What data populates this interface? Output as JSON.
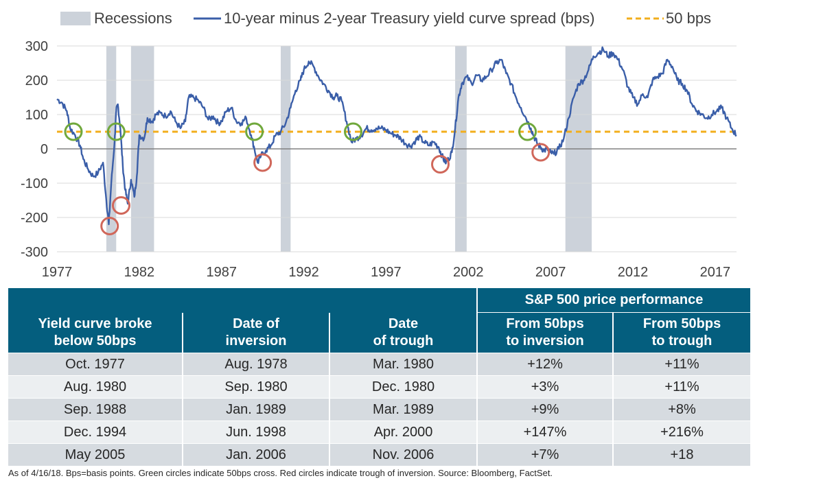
{
  "chart_data": {
    "type": "line",
    "legend": [
      {
        "label": "Recessions",
        "kind": "band",
        "color": "#ccd2da"
      },
      {
        "label": "10-year minus 2-year Treasury yield curve spread (bps)",
        "kind": "line",
        "color": "#3a5ea8"
      },
      {
        "label": "50 bps",
        "kind": "dashed",
        "color": "#f2ae1c"
      }
    ],
    "x_ticks": [
      "1977",
      "1982",
      "1987",
      "1992",
      "1997",
      "2002",
      "2007",
      "2012",
      "2017"
    ],
    "y_ticks": [
      "300",
      "200",
      "100",
      "0",
      "-100",
      "-200",
      "-300"
    ],
    "xlim": [
      1977,
      2018.3
    ],
    "ylim": [
      -300,
      300
    ],
    "threshold": 50,
    "recessions": [
      [
        1980.0,
        1980.6
      ],
      [
        1981.5,
        1982.9
      ],
      [
        1990.6,
        1991.2
      ],
      [
        2001.2,
        2001.9
      ],
      [
        2007.9,
        2009.5
      ]
    ],
    "series": [
      {
        "name": "10-year minus 2-year Treasury yield curve spread (bps)",
        "x": [
          1977.0,
          1977.3,
          1977.6,
          1977.8,
          1978.1,
          1978.4,
          1978.6,
          1978.9,
          1979.2,
          1979.5,
          1979.8,
          1980.0,
          1980.15,
          1980.3,
          1980.5,
          1980.6,
          1980.7,
          1980.85,
          1981.0,
          1981.15,
          1981.3,
          1981.5,
          1981.7,
          1981.85,
          1982.0,
          1982.3,
          1982.5,
          1982.8,
          1983.0,
          1983.3,
          1983.6,
          1983.9,
          1984.2,
          1984.5,
          1984.8,
          1985.0,
          1985.3,
          1985.6,
          1985.9,
          1986.2,
          1986.5,
          1986.8,
          1987.0,
          1987.3,
          1987.6,
          1987.9,
          1988.2,
          1988.5,
          1988.8,
          1989.0,
          1989.2,
          1989.4,
          1989.7,
          1990.0,
          1990.3,
          1990.6,
          1990.9,
          1991.2,
          1991.5,
          1991.8,
          1992.0,
          1992.3,
          1992.6,
          1992.9,
          1993.2,
          1993.5,
          1993.8,
          1994.0,
          1994.3,
          1994.6,
          1994.9,
          1995.2,
          1995.5,
          1995.8,
          1996.1,
          1996.4,
          1996.7,
          1997.0,
          1997.3,
          1997.6,
          1997.9,
          1998.2,
          1998.5,
          1998.8,
          1999.0,
          1999.3,
          1999.6,
          1999.9,
          2000.2,
          2000.4,
          2000.6,
          2000.8,
          2001.0,
          2001.2,
          2001.4,
          2001.6,
          2001.9,
          2002.2,
          2002.5,
          2002.8,
          2003.1,
          2003.4,
          2003.7,
          2004.0,
          2004.3,
          2004.6,
          2004.9,
          2005.2,
          2005.5,
          2005.8,
          2006.0,
          2006.2,
          2006.4,
          2006.6,
          2006.8,
          2007.0,
          2007.2,
          2007.5,
          2007.8,
          2008.1,
          2008.4,
          2008.7,
          2009.0,
          2009.3,
          2009.6,
          2009.9,
          2010.2,
          2010.5,
          2010.8,
          2011.1,
          2011.4,
          2011.7,
          2012.0,
          2012.3,
          2012.6,
          2012.9,
          2013.2,
          2013.5,
          2013.8,
          2014.1,
          2014.4,
          2014.7,
          2015.0,
          2015.3,
          2015.6,
          2015.9,
          2016.2,
          2016.5,
          2016.8,
          2017.1,
          2017.4,
          2017.7,
          2018.0,
          2018.3
        ],
        "values": [
          145,
          135,
          110,
          60,
          40,
          10,
          -30,
          -60,
          -80,
          -70,
          -40,
          -150,
          -220,
          -100,
          20,
          110,
          130,
          60,
          -50,
          -120,
          -160,
          -90,
          -140,
          -80,
          40,
          30,
          90,
          80,
          100,
          105,
          95,
          110,
          80,
          60,
          80,
          150,
          150,
          140,
          120,
          85,
          95,
          75,
          80,
          110,
          120,
          80,
          75,
          90,
          40,
          0,
          -40,
          -20,
          -5,
          10,
          40,
          50,
          75,
          120,
          170,
          200,
          230,
          255,
          240,
          210,
          190,
          170,
          150,
          155,
          140,
          80,
          20,
          30,
          40,
          60,
          55,
          60,
          60,
          55,
          45,
          40,
          30,
          15,
          8,
          25,
          35,
          20,
          10,
          20,
          5,
          -20,
          -40,
          -30,
          -10,
          60,
          150,
          190,
          210,
          190,
          215,
          200,
          210,
          230,
          250,
          260,
          220,
          190,
          150,
          120,
          90,
          60,
          35,
          15,
          5,
          -5,
          0,
          -10,
          -15,
          0,
          30,
          90,
          150,
          190,
          200,
          230,
          270,
          280,
          290,
          270,
          280,
          260,
          230,
          180,
          150,
          130,
          160,
          150,
          200,
          210,
          220,
          260,
          240,
          200,
          190,
          170,
          130,
          110,
          100,
          90,
          100,
          110,
          120,
          90,
          60,
          40
        ]
      }
    ],
    "markers": {
      "green": [
        [
          1978.0,
          50
        ],
        [
          1980.6,
          50
        ],
        [
          1989.0,
          50
        ],
        [
          1995.0,
          50
        ],
        [
          2005.6,
          50
        ]
      ],
      "red": [
        [
          1980.2,
          -225
        ],
        [
          1980.9,
          -165
        ],
        [
          1989.5,
          -40
        ],
        [
          2000.3,
          -45
        ],
        [
          2006.4,
          -10
        ]
      ]
    }
  },
  "table": {
    "group_header": "S&P 500 price performance",
    "columns": [
      "Yield curve broke\nbelow 50bps",
      "Date of\ninversion",
      "Date\nof trough",
      "From 50bps\nto inversion",
      "From 50bps\nto trough"
    ],
    "rows": [
      [
        "Oct. 1977",
        "Aug. 1978",
        "Mar. 1980",
        "+12%",
        "+11%"
      ],
      [
        "Aug. 1980",
        "Sep. 1980",
        "Dec. 1980",
        "+3%",
        "+11%"
      ],
      [
        "Sep. 1988",
        "Jan. 1989",
        "Mar. 1989",
        "+9%",
        "+8%"
      ],
      [
        "Dec. 1994",
        "Jun. 1998",
        "Apr. 2000",
        "+147%",
        "+216%"
      ],
      [
        "May 2005",
        "Jan. 2006",
        "Nov. 2006",
        "+7%",
        "+18"
      ]
    ]
  },
  "footnote": "As of 4/16/18. Bps=basis points. Green circles indicate 50bps cross. Red circles indicate trough of inversion. Source: Bloomberg, FactSet."
}
